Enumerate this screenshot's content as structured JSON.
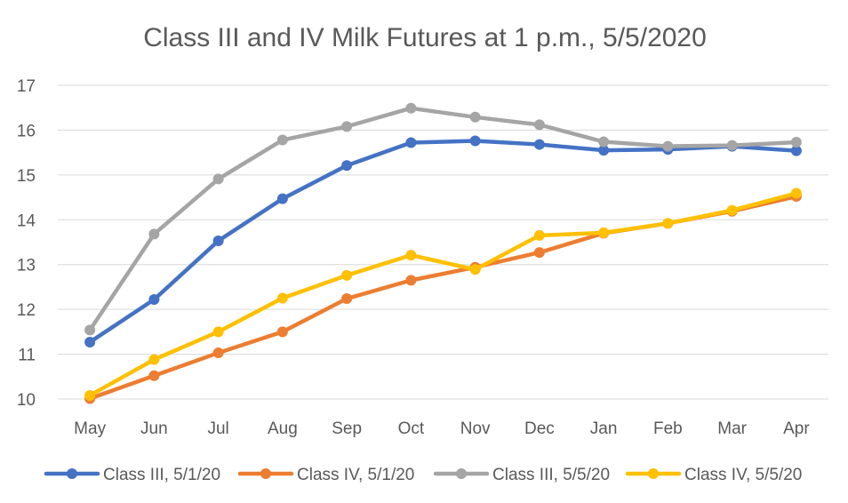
{
  "chart_data": {
    "type": "line",
    "title": "Class III and IV Milk Futures at 1 p.m., 5/5/2020",
    "xlabel": "",
    "ylabel": "",
    "categories": [
      "May",
      "Jun",
      "Jul",
      "Aug",
      "Sep",
      "Oct",
      "Nov",
      "Dec",
      "Jan",
      "Feb",
      "Mar",
      "Apr"
    ],
    "ylim": [
      10,
      17
    ],
    "yticks": [
      "10",
      "11",
      "12",
      "13",
      "14",
      "15",
      "16",
      "17"
    ],
    "grid": true,
    "legend_position": "bottom",
    "series": [
      {
        "name": "Class III, 5/1/20",
        "color": "#4472c4",
        "values": [
          11.27,
          12.22,
          13.53,
          14.47,
          15.21,
          15.72,
          15.76,
          15.68,
          15.55,
          15.57,
          15.64,
          15.54
        ]
      },
      {
        "name": "Class IV, 5/1/20",
        "color": "#ed7d31",
        "values": [
          10.01,
          10.52,
          11.03,
          11.5,
          12.24,
          12.65,
          12.94,
          13.27,
          13.7,
          13.92,
          14.19,
          14.52
        ]
      },
      {
        "name": "Class III, 5/5/20",
        "color": "#a5a5a5",
        "values": [
          11.54,
          13.68,
          14.91,
          15.78,
          16.08,
          16.49,
          16.29,
          16.12,
          15.74,
          15.64,
          15.66,
          15.73
        ]
      },
      {
        "name": "Class IV, 5/5/20",
        "color": "#ffc000",
        "values": [
          10.08,
          10.88,
          11.5,
          12.25,
          12.76,
          13.21,
          12.89,
          13.65,
          13.71,
          13.92,
          14.21,
          14.59
        ]
      }
    ]
  }
}
